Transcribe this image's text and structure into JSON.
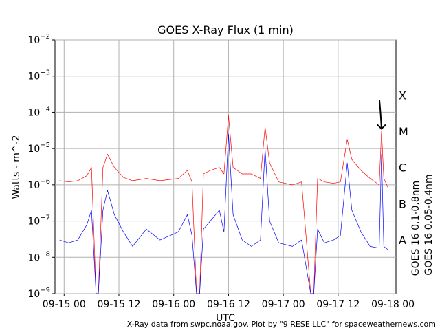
{
  "chart_data": {
    "type": "line",
    "title": "GOES X-Ray Flux (1 min)",
    "xlabel": "UTC",
    "ylabel": "Watts - m^-2",
    "yscale": "log",
    "ylim": [
      1e-09,
      0.01
    ],
    "xlim": [
      "2018-09-14T22:00",
      "2018-09-18T00:40"
    ],
    "grid": true,
    "x_ticks": [
      {
        "t": "2018-09-15T00:00",
        "label": "09-15 00"
      },
      {
        "t": "2018-09-15T12:00",
        "label": "09-15 12"
      },
      {
        "t": "2018-09-16T00:00",
        "label": "09-16 00"
      },
      {
        "t": "2018-09-16T12:00",
        "label": "09-16 12"
      },
      {
        "t": "2018-09-17T00:00",
        "label": "09-17 00"
      },
      {
        "t": "2018-09-17T12:00",
        "label": "09-17 12"
      },
      {
        "t": "2018-09-18T00:00",
        "label": "09-18 00"
      }
    ],
    "y_ticks": [
      {
        "value": 1e-09,
        "base": "10",
        "exp": "−9"
      },
      {
        "value": 1e-08,
        "base": "10",
        "exp": "−8"
      },
      {
        "value": 1e-07,
        "base": "10",
        "exp": "−7"
      },
      {
        "value": 1e-06,
        "base": "10",
        "exp": "−6"
      },
      {
        "value": 1e-05,
        "base": "10",
        "exp": "−5"
      },
      {
        "value": 0.0001,
        "base": "10",
        "exp": "−4"
      },
      {
        "value": 0.001,
        "base": "10",
        "exp": "−3"
      },
      {
        "value": 0.01,
        "base": "10",
        "exp": "−2"
      }
    ],
    "flare_classes": [
      {
        "label": "X",
        "at": 0.0003
      },
      {
        "label": "M",
        "at": 3e-05
      },
      {
        "label": "C",
        "at": 3e-06
      },
      {
        "label": "B",
        "at": 3e-07
      },
      {
        "label": "A",
        "at": 3e-08
      }
    ],
    "series": [
      {
        "name": "GOES 16 0.1-0.8nm",
        "color": "#ff0000",
        "points": [
          [
            "2018-09-14T23:00",
            1.3e-06
          ],
          [
            "2018-09-15T01:00",
            1.2e-06
          ],
          [
            "2018-09-15T03:00",
            1.3e-06
          ],
          [
            "2018-09-15T05:00",
            1.8e-06
          ],
          [
            "2018-09-15T06:00",
            3e-06
          ],
          [
            "2018-09-15T07:00",
            1e-09
          ],
          [
            "2018-09-15T07:30",
            1e-09
          ],
          [
            "2018-09-15T08:30",
            3e-06
          ],
          [
            "2018-09-15T09:30",
            7e-06
          ],
          [
            "2018-09-15T11:00",
            3e-06
          ],
          [
            "2018-09-15T13:00",
            1.6e-06
          ],
          [
            "2018-09-15T15:00",
            1.3e-06
          ],
          [
            "2018-09-15T18:00",
            1.5e-06
          ],
          [
            "2018-09-15T21:00",
            1.3e-06
          ],
          [
            "2018-09-16T01:00",
            1.5e-06
          ],
          [
            "2018-09-16T03:00",
            2.5e-06
          ],
          [
            "2018-09-16T04:00",
            1.2e-06
          ],
          [
            "2018-09-16T05:00",
            1e-09
          ],
          [
            "2018-09-16T05:40",
            1e-09
          ],
          [
            "2018-09-16T06:30",
            2e-06
          ],
          [
            "2018-09-16T08:00",
            2.5e-06
          ],
          [
            "2018-09-16T10:00",
            3e-06
          ],
          [
            "2018-09-16T11:00",
            2e-06
          ],
          [
            "2018-09-16T12:00",
            8e-05
          ],
          [
            "2018-09-16T13:00",
            3e-06
          ],
          [
            "2018-09-16T15:00",
            2e-06
          ],
          [
            "2018-09-16T17:00",
            2e-06
          ],
          [
            "2018-09-16T19:00",
            1.5e-06
          ],
          [
            "2018-09-16T20:00",
            4e-05
          ],
          [
            "2018-09-16T21:00",
            4e-06
          ],
          [
            "2018-09-16T23:00",
            1.2e-06
          ],
          [
            "2018-09-17T02:00",
            1e-06
          ],
          [
            "2018-09-17T04:00",
            1.2e-06
          ],
          [
            "2018-09-17T06:00",
            1e-09
          ],
          [
            "2018-09-17T06:40",
            1e-09
          ],
          [
            "2018-09-17T07:30",
            1.5e-06
          ],
          [
            "2018-09-17T09:00",
            1.2e-06
          ],
          [
            "2018-09-17T11:00",
            1.1e-06
          ],
          [
            "2018-09-17T12:30",
            1.2e-06
          ],
          [
            "2018-09-17T14:00",
            1.8e-05
          ],
          [
            "2018-09-17T15:00",
            5e-06
          ],
          [
            "2018-09-17T17:00",
            2.5e-06
          ],
          [
            "2018-09-17T19:00",
            1.5e-06
          ],
          [
            "2018-09-17T21:00",
            1e-06
          ],
          [
            "2018-09-17T21:30",
            3e-05
          ],
          [
            "2018-09-17T22:00",
            1.5e-06
          ],
          [
            "2018-09-17T23:00",
            8e-07
          ]
        ]
      },
      {
        "name": "GOES 16 0.05-0.4nm",
        "color": "#0000ff",
        "points": [
          [
            "2018-09-14T23:00",
            3e-08
          ],
          [
            "2018-09-15T01:00",
            2.5e-08
          ],
          [
            "2018-09-15T03:00",
            3e-08
          ],
          [
            "2018-09-15T05:00",
            8e-08
          ],
          [
            "2018-09-15T06:00",
            2e-07
          ],
          [
            "2018-09-15T07:00",
            1e-09
          ],
          [
            "2018-09-15T07:30",
            1e-09
          ],
          [
            "2018-09-15T08:30",
            2e-07
          ],
          [
            "2018-09-15T09:30",
            7e-07
          ],
          [
            "2018-09-15T11:00",
            1.5e-07
          ],
          [
            "2018-09-15T13:00",
            5e-08
          ],
          [
            "2018-09-15T15:00",
            2e-08
          ],
          [
            "2018-09-15T18:00",
            6e-08
          ],
          [
            "2018-09-15T21:00",
            3e-08
          ],
          [
            "2018-09-16T01:00",
            5e-08
          ],
          [
            "2018-09-16T03:00",
            1.5e-07
          ],
          [
            "2018-09-16T04:00",
            4e-08
          ],
          [
            "2018-09-16T05:00",
            1e-09
          ],
          [
            "2018-09-16T05:40",
            1e-09
          ],
          [
            "2018-09-16T06:30",
            6e-08
          ],
          [
            "2018-09-16T08:00",
            1e-07
          ],
          [
            "2018-09-16T10:00",
            2e-07
          ],
          [
            "2018-09-16T11:00",
            5e-08
          ],
          [
            "2018-09-16T12:00",
            2.5e-05
          ],
          [
            "2018-09-16T13:00",
            1.5e-07
          ],
          [
            "2018-09-16T15:00",
            3e-08
          ],
          [
            "2018-09-16T17:00",
            2e-08
          ],
          [
            "2018-09-16T19:00",
            3e-08
          ],
          [
            "2018-09-16T20:00",
            1e-05
          ],
          [
            "2018-09-16T21:00",
            1e-07
          ],
          [
            "2018-09-16T23:00",
            2.5e-08
          ],
          [
            "2018-09-17T02:00",
            2e-08
          ],
          [
            "2018-09-17T04:00",
            3e-08
          ],
          [
            "2018-09-17T06:00",
            1e-09
          ],
          [
            "2018-09-17T06:40",
            1e-09
          ],
          [
            "2018-09-17T07:30",
            6e-08
          ],
          [
            "2018-09-17T09:00",
            2.5e-08
          ],
          [
            "2018-09-17T11:00",
            3e-08
          ],
          [
            "2018-09-17T12:30",
            4e-08
          ],
          [
            "2018-09-17T14:00",
            4e-06
          ],
          [
            "2018-09-17T15:00",
            2e-07
          ],
          [
            "2018-09-17T17:00",
            5e-08
          ],
          [
            "2018-09-17T19:00",
            2e-08
          ],
          [
            "2018-09-17T21:00",
            1.8e-08
          ],
          [
            "2018-09-17T21:30",
            7e-06
          ],
          [
            "2018-09-17T22:00",
            2e-08
          ],
          [
            "2018-09-17T23:00",
            1.6e-08
          ]
        ]
      }
    ],
    "annotation": {
      "type": "arrow",
      "color": "#000000",
      "target": [
        "2018-09-17T21:30",
        3.5e-05
      ]
    },
    "credit": "X-Ray data from swpc.noaa.gov. Plot by \"9 RESE LLC\" for spaceweathernews.com"
  }
}
